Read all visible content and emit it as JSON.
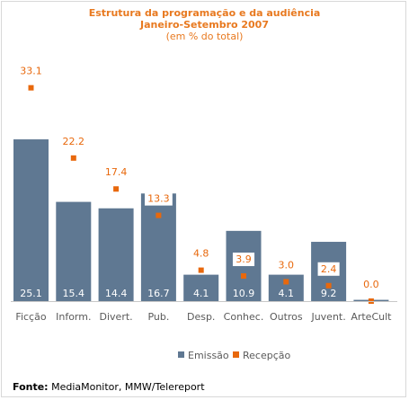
{
  "chart_data": {
    "type": "bar",
    "title": "Estrutura da programação e da audiência",
    "subtitle": "Janeiro-Setembro 2007",
    "unit_note": "(em % do total)",
    "categories": [
      "Ficção",
      "Inform.",
      "Divert.",
      "Pub.",
      "Desp.",
      "Conhec.",
      "Outros",
      "Juvent.",
      "ArteCult"
    ],
    "series": [
      {
        "name": "Emissão",
        "kind": "bar",
        "color": "#5f7892",
        "values": [
          25.1,
          15.4,
          14.4,
          16.7,
          4.1,
          10.9,
          4.1,
          9.2,
          0.2
        ],
        "labels": [
          "25.1",
          "15.4",
          "14.4",
          "16.7",
          "4.1",
          "10.9",
          "4.1",
          "9.2",
          ""
        ]
      },
      {
        "name": "Recepção",
        "kind": "point",
        "color": "#e8680c",
        "values": [
          33.1,
          22.2,
          17.4,
          13.3,
          4.8,
          3.9,
          3.0,
          2.4,
          0.0
        ],
        "labels": [
          "33.1",
          "22.2",
          "17.4",
          "13.3",
          "4.8",
          "3.9",
          "3.0",
          "2.4",
          "0.0"
        ]
      }
    ],
    "ylim": [
      0,
      35
    ],
    "grid": false,
    "legend": "bottom-center"
  },
  "footer": {
    "source_label": "Fonte:",
    "source_text": " MediaMonitor, MMW/Telereport"
  }
}
